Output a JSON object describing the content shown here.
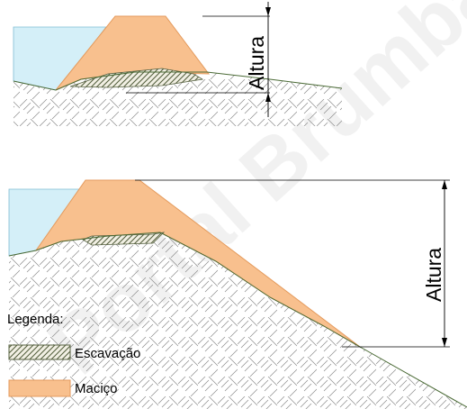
{
  "diagram": {
    "top_height_label": "Altura",
    "bottom_height_label": "Altura",
    "legend_title": "Legenda:",
    "legend": [
      {
        "label": "Escavação",
        "kind": "hatched",
        "color": "#9fae82"
      },
      {
        "label": "Maciço",
        "kind": "solid",
        "color": "#f8c08e"
      }
    ],
    "watermark": "Portal Brumbão"
  },
  "colors": {
    "water": "#d4eff8",
    "embankment": "#f8c08e",
    "embankment_stroke": "#e49a5c",
    "excavation": "#9fae82",
    "ground_line": "#4a6a35",
    "hatch": "#707070",
    "dimension": "#000000"
  }
}
